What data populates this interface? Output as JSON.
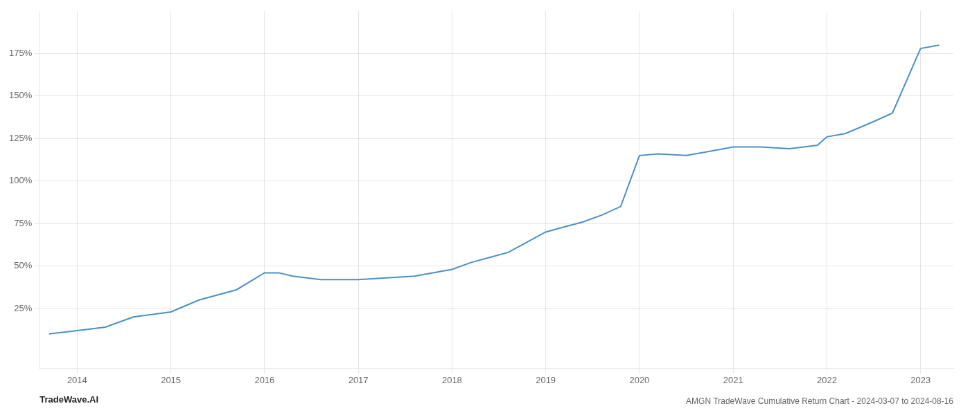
{
  "chart_data": {
    "type": "line",
    "title": "AMGN TradeWave Cumulative Return Chart - 2024-03-07 to 2024-08-16",
    "annotations": [
      "TradeWave.AI"
    ],
    "x": [
      2013.7,
      2014.0,
      2014.3,
      2014.6,
      2015.0,
      2015.3,
      2015.7,
      2016.0,
      2016.15,
      2016.3,
      2016.6,
      2017.0,
      2017.3,
      2017.6,
      2018.0,
      2018.2,
      2018.4,
      2018.6,
      2018.8,
      2019.0,
      2019.2,
      2019.4,
      2019.6,
      2019.8,
      2020.0,
      2020.2,
      2020.5,
      2020.7,
      2021.0,
      2021.3,
      2021.6,
      2021.9,
      2022.0,
      2022.2,
      2022.5,
      2022.7,
      2023.0,
      2023.2
    ],
    "values": [
      10,
      12,
      14,
      20,
      23,
      30,
      36,
      46,
      46,
      44,
      42,
      42,
      43,
      44,
      48,
      52,
      55,
      58,
      64,
      70,
      73,
      76,
      80,
      85,
      115,
      116,
      115,
      117,
      120,
      120,
      119,
      121,
      126,
      128,
      135,
      140,
      178,
      180
    ],
    "color": "#4a90c4",
    "xlim": [
      2013.6,
      2023.35
    ],
    "xticks": [
      2014,
      2015,
      2016,
      2017,
      2018,
      2019,
      2020,
      2021,
      2022,
      2023
    ],
    "ylim": [
      -10,
      200
    ],
    "yticks": [
      {
        "value": 25,
        "label": "25%"
      },
      {
        "value": 50,
        "label": "50%"
      },
      {
        "value": 75,
        "label": "75%"
      },
      {
        "value": 100,
        "label": "100%"
      },
      {
        "value": 125,
        "label": "125%"
      },
      {
        "value": 150,
        "label": "150%"
      },
      {
        "value": 175,
        "label": "175%"
      }
    ],
    "grid": true
  }
}
